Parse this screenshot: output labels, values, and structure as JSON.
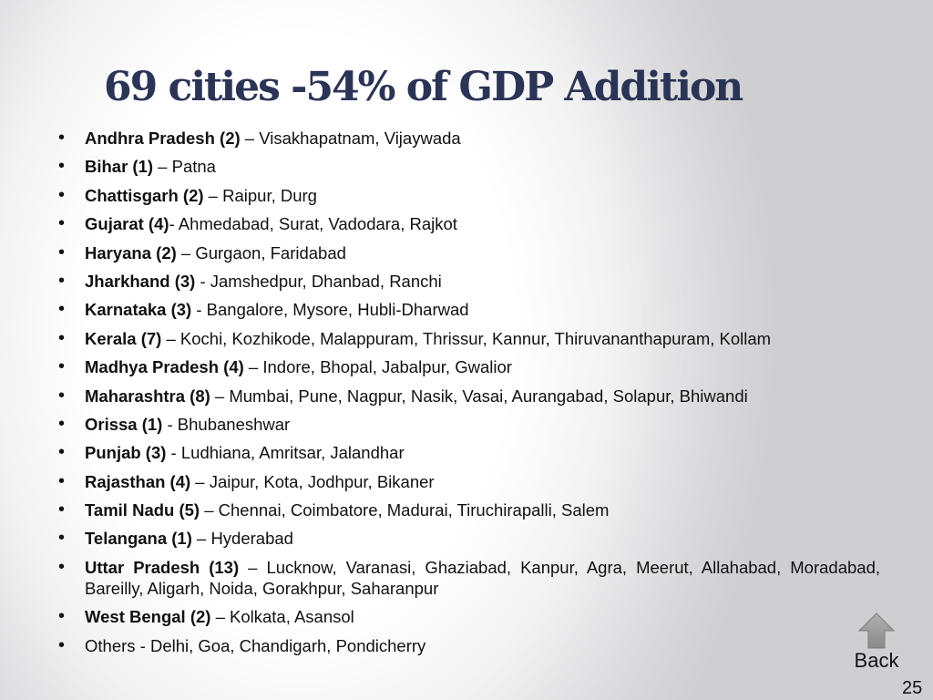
{
  "slide": {
    "title": "69 cities -54% of GDP Addition",
    "items": [
      {
        "state": "Andhra Pradesh (2)",
        "cities": " – Visakhapatnam, Vijaywada"
      },
      {
        "state": "Bihar (1)",
        "cities": " – Patna"
      },
      {
        "state": "Chattisgarh (2)",
        "cities": " – Raipur, Durg"
      },
      {
        "state": "Gujarat (4)",
        "cities": "- Ahmedabad, Surat, Vadodara, Rajkot"
      },
      {
        "state": "Haryana (2)",
        "cities": " – Gurgaon, Faridabad"
      },
      {
        "state": "Jharkhand (3)",
        "cities": " - Jamshedpur, Dhanbad, Ranchi"
      },
      {
        "state": "Karnataka (3)",
        "cities": " - Bangalore, Mysore, Hubli-Dharwad"
      },
      {
        "state": "Kerala (7)",
        "cities": " – Kochi, Kozhikode, Malappuram, Thrissur, Kannur, Thiruvananthapuram, Kollam"
      },
      {
        "state": "Madhya Pradesh (4)",
        "cities": " – Indore, Bhopal, Jabalpur, Gwalior"
      },
      {
        "state": "Maharashtra (8)",
        "cities": " – Mumbai, Pune, Nagpur, Nasik, Vasai, Aurangabad, Solapur, Bhiwandi"
      },
      {
        "state": "Orissa (1)",
        "cities": " - Bhubaneshwar"
      },
      {
        "state": "Punjab (3)",
        "cities": " - Ludhiana, Amritsar, Jalandhar"
      },
      {
        "state": "Rajasthan (4)",
        "cities": " – Jaipur, Kota, Jodhpur, Bikaner"
      },
      {
        "state": "Tamil Nadu (5)",
        "cities": " – Chennai, Coimbatore, Madurai, Tiruchirapalli, Salem"
      },
      {
        "state": "Telangana (1)",
        "cities": " – Hyderabad"
      },
      {
        "state": "Uttar Pradesh (13)",
        "cities": " – Lucknow, Varanasi, Ghaziabad, Kanpur, Agra, Meerut, Allahabad, Moradabad, Bareilly, Aligarh, Noida, Gorakhpur, Saharanpur"
      },
      {
        "state": "West Bengal (2)",
        "cities": " – Kolkata, Asansol"
      }
    ],
    "others": "Others - Delhi, Goa, Chandigarh, Pondicherry"
  },
  "nav": {
    "back_label": "Back",
    "back_icon": "up-arrow-icon",
    "icon_color": "#9a9a9a"
  },
  "page_number": "25",
  "colors": {
    "title": "#2a3456",
    "text": "#111111"
  }
}
